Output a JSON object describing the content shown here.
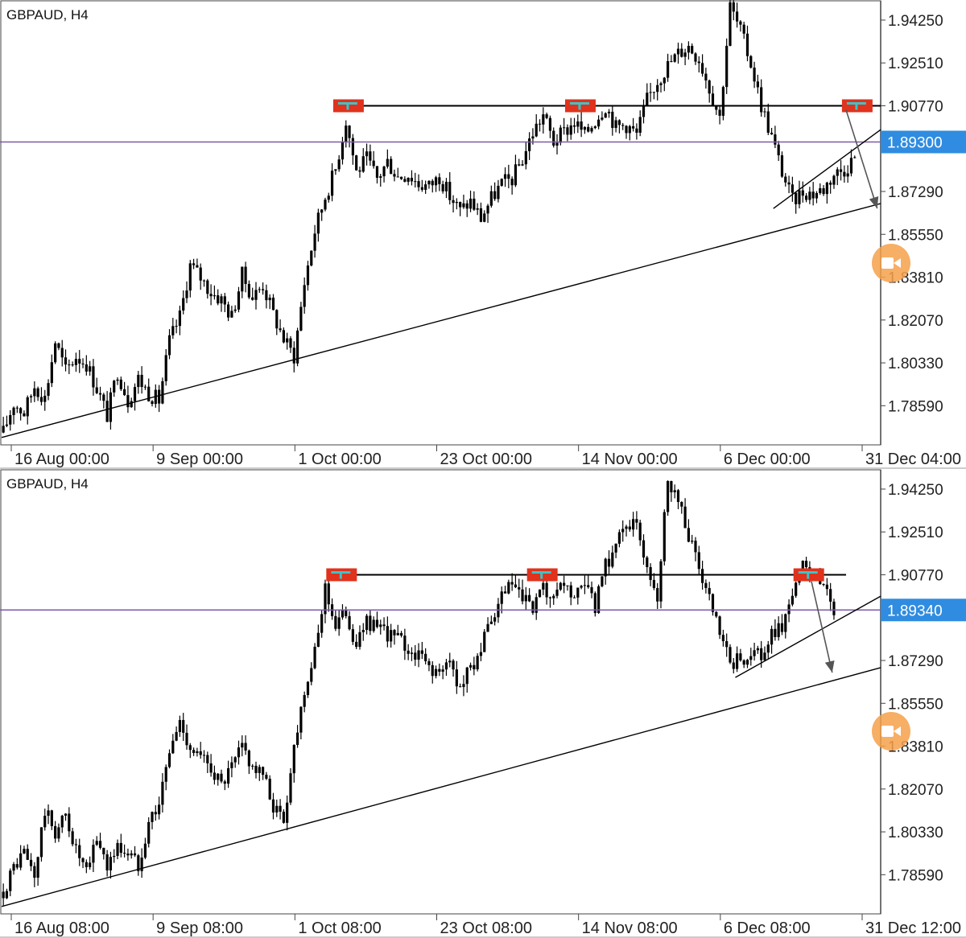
{
  "colors": {
    "background": "#ffffff",
    "candles": "#000000",
    "current_price_line": "#7b5aa6",
    "current_price_tag": "#2f8ce0",
    "resistance_marker": "#e0321c",
    "touch_highlight": "#3cc3c8",
    "video_button": "#f6a04a"
  },
  "icons": {
    "floating_button": "video-camera-icon"
  },
  "chart_data": [
    {
      "type": "candlestick",
      "symbol_label": "GBPAUD, H4",
      "x_tick_labels": [
        "16 Aug 00:00",
        "9 Sep 00:00",
        "1 Oct 00:00",
        "23 Oct 00:00",
        "14 Nov 00:00",
        "6 Dec 00:00",
        "31 Dec 04:00"
      ],
      "y_tick_labels": [
        "1.94250",
        "1.92510",
        "1.90770",
        "1.87290",
        "1.85550",
        "1.83810",
        "1.82070",
        "1.80330",
        "1.78590"
      ],
      "ylim": [
        1.77,
        1.95
      ],
      "current_price_label": "1.89300",
      "current_price": 1.893,
      "resistance_level": 1.9077,
      "price_path": [
        [
          0,
          1.775
        ],
        [
          3,
          1.787
        ],
        [
          6,
          1.783
        ],
        [
          9,
          1.794
        ],
        [
          12,
          1.789
        ],
        [
          15,
          1.812
        ],
        [
          18,
          1.8
        ],
        [
          21,
          1.806
        ],
        [
          24,
          1.803
        ],
        [
          27,
          1.793
        ],
        [
          30,
          1.782
        ],
        [
          33,
          1.8
        ],
        [
          36,
          1.788
        ],
        [
          39,
          1.797
        ],
        [
          42,
          1.791
        ],
        [
          45,
          1.788
        ],
        [
          48,
          1.812
        ],
        [
          51,
          1.822
        ],
        [
          54,
          1.843
        ],
        [
          57,
          1.838
        ],
        [
          60,
          1.832
        ],
        [
          63,
          1.829
        ],
        [
          66,
          1.822
        ],
        [
          69,
          1.839
        ],
        [
          72,
          1.83
        ],
        [
          75,
          1.835
        ],
        [
          78,
          1.823
        ],
        [
          81,
          1.813
        ],
        [
          84,
          1.806
        ],
        [
          87,
          1.836
        ],
        [
          90,
          1.857
        ],
        [
          93,
          1.871
        ],
        [
          96,
          1.882
        ],
        [
          99,
          1.902
        ],
        [
          102,
          1.881
        ],
        [
          105,
          1.886
        ],
        [
          108,
          1.878
        ],
        [
          111,
          1.885
        ],
        [
          114,
          1.879
        ],
        [
          117,
          1.88
        ],
        [
          120,
          1.876
        ],
        [
          123,
          1.875
        ],
        [
          126,
          1.879
        ],
        [
          129,
          1.871
        ],
        [
          132,
          1.865
        ],
        [
          135,
          1.869
        ],
        [
          138,
          1.862
        ],
        [
          141,
          1.87
        ],
        [
          144,
          1.876
        ],
        [
          147,
          1.878
        ],
        [
          150,
          1.886
        ],
        [
          153,
          1.897
        ],
        [
          156,
          1.904
        ],
        [
          159,
          1.893
        ],
        [
          162,
          1.897
        ],
        [
          165,
          1.901
        ],
        [
          168,
          1.896
        ],
        [
          171,
          1.902
        ],
        [
          174,
          1.908
        ],
        [
          177,
          1.899
        ],
        [
          180,
          1.9
        ],
        [
          183,
          1.896
        ],
        [
          186,
          1.91
        ],
        [
          189,
          1.918
        ],
        [
          192,
          1.924
        ],
        [
          195,
          1.929
        ],
        [
          198,
          1.932
        ],
        [
          201,
          1.927
        ],
        [
          204,
          1.915
        ],
        [
          207,
          1.903
        ],
        [
          210,
          1.948
        ],
        [
          213,
          1.938
        ],
        [
          216,
          1.925
        ],
        [
          219,
          1.908
        ],
        [
          222,
          1.895
        ],
        [
          225,
          1.881
        ],
        [
          228,
          1.869
        ],
        [
          231,
          1.873
        ],
        [
          234,
          1.872
        ],
        [
          237,
          1.874
        ],
        [
          240,
          1.88
        ],
        [
          243,
          1.882
        ],
        [
          246,
          1.887
        ]
      ],
      "support_trendline": [
        [
          0,
          1.773
        ],
        [
          254,
          1.868
        ]
      ],
      "lower_rising_line": [
        [
          223,
          1.866
        ],
        [
          254,
          1.898
        ]
      ],
      "projection_arrow": [
        [
          244,
          1.906
        ],
        [
          253,
          1.866
        ]
      ],
      "resistance_line_span": [
        100,
        254
      ],
      "resistance_markers": [
        100,
        167,
        247
      ],
      "touch_highlights": [
        100,
        167,
        247
      ]
    },
    {
      "type": "candlestick",
      "symbol_label": "GBPAUD, H4",
      "x_tick_labels": [
        "16 Aug 08:00",
        "9 Sep 08:00",
        "1 Oct 08:00",
        "23 Oct 08:00",
        "14 Nov 08:00",
        "6 Dec 08:00",
        "31 Dec 12:00"
      ],
      "y_tick_labels": [
        "1.94250",
        "1.92510",
        "1.90770",
        "1.87290",
        "1.85550",
        "1.83810",
        "1.82070",
        "1.80330",
        "1.78590"
      ],
      "ylim": [
        1.77,
        1.95
      ],
      "current_price_label": "1.89340",
      "current_price": 1.8934,
      "resistance_level": 1.9077,
      "price_path": [
        [
          0,
          1.779
        ],
        [
          3,
          1.789
        ],
        [
          6,
          1.795
        ],
        [
          9,
          1.785
        ],
        [
          12,
          1.812
        ],
        [
          15,
          1.803
        ],
        [
          18,
          1.81
        ],
        [
          21,
          1.796
        ],
        [
          24,
          1.786
        ],
        [
          27,
          1.801
        ],
        [
          30,
          1.79
        ],
        [
          33,
          1.797
        ],
        [
          36,
          1.795
        ],
        [
          39,
          1.79
        ],
        [
          42,
          1.808
        ],
        [
          45,
          1.815
        ],
        [
          48,
          1.836
        ],
        [
          51,
          1.848
        ],
        [
          54,
          1.838
        ],
        [
          57,
          1.833
        ],
        [
          60,
          1.83
        ],
        [
          63,
          1.822
        ],
        [
          66,
          1.829
        ],
        [
          69,
          1.838
        ],
        [
          72,
          1.83
        ],
        [
          75,
          1.826
        ],
        [
          78,
          1.814
        ],
        [
          81,
          1.808
        ],
        [
          84,
          1.838
        ],
        [
          87,
          1.862
        ],
        [
          90,
          1.875
        ],
        [
          93,
          1.903
        ],
        [
          96,
          1.887
        ],
        [
          99,
          1.893
        ],
        [
          102,
          1.878
        ],
        [
          105,
          1.89
        ],
        [
          108,
          1.885
        ],
        [
          111,
          1.884
        ],
        [
          114,
          1.882
        ],
        [
          117,
          1.877
        ],
        [
          120,
          1.875
        ],
        [
          123,
          1.871
        ],
        [
          126,
          1.867
        ],
        [
          129,
          1.872
        ],
        [
          132,
          1.862
        ],
        [
          135,
          1.87
        ],
        [
          138,
          1.878
        ],
        [
          141,
          1.888
        ],
        [
          144,
          1.898
        ],
        [
          147,
          1.904
        ],
        [
          150,
          1.897
        ],
        [
          153,
          1.894
        ],
        [
          156,
          1.901
        ],
        [
          159,
          1.896
        ],
        [
          162,
          1.904
        ],
        [
          165,
          1.898
        ],
        [
          168,
          1.902
        ],
        [
          171,
          1.895
        ],
        [
          174,
          1.911
        ],
        [
          177,
          1.92
        ],
        [
          180,
          1.93
        ],
        [
          183,
          1.926
        ],
        [
          186,
          1.913
        ],
        [
          189,
          1.899
        ],
        [
          192,
          1.948
        ],
        [
          195,
          1.938
        ],
        [
          198,
          1.924
        ],
        [
          201,
          1.91
        ],
        [
          204,
          1.897
        ],
        [
          207,
          1.883
        ],
        [
          210,
          1.871
        ],
        [
          213,
          1.873
        ],
        [
          216,
          1.876
        ],
        [
          219,
          1.874
        ],
        [
          222,
          1.883
        ],
        [
          225,
          1.887
        ],
        [
          228,
          1.9
        ],
        [
          231,
          1.911
        ],
        [
          234,
          1.907
        ],
        [
          237,
          1.904
        ],
        [
          240,
          1.894
        ]
      ],
      "support_trendline": [
        [
          0,
          1.773
        ],
        [
          254,
          1.87
        ]
      ],
      "lower_rising_line": [
        [
          212,
          1.866
        ],
        [
          254,
          1.899
        ]
      ],
      "projection_arrow": [
        [
          234,
          1.905
        ],
        [
          240,
          1.868
        ]
      ],
      "resistance_line_span": [
        96,
        244
      ],
      "resistance_markers": [
        98,
        156,
        233
      ],
      "touch_highlights": [
        98,
        156,
        233
      ]
    }
  ]
}
